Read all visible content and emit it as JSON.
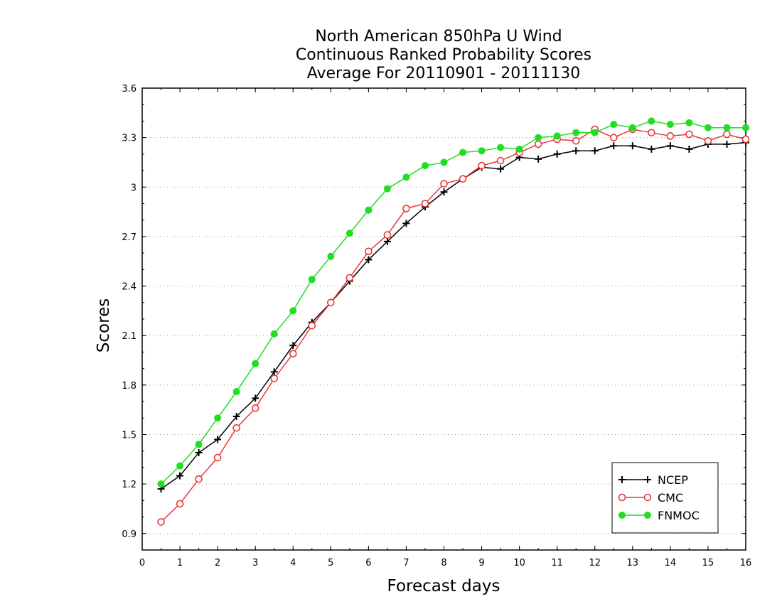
{
  "chart_data": {
    "type": "line",
    "title": [
      "North American 850hPa U Wind",
      "Continuous Ranked Probability Scores",
      "Average For 20110901 - 20111130"
    ],
    "xlabel": "Forecast days",
    "ylabel": "Scores",
    "xlim": [
      0,
      16
    ],
    "ylim": [
      0.8,
      3.6
    ],
    "xticks": [
      "0",
      "1",
      "2",
      "3",
      "4",
      "5",
      "6",
      "7",
      "8",
      "9",
      "10",
      "11",
      "12",
      "13",
      "14",
      "15",
      "16"
    ],
    "yticks": [
      "0.9",
      "1.2",
      "1.5",
      "1.8",
      "2.1",
      "2.4",
      "2.7",
      "3",
      "3.3",
      "3.6"
    ],
    "grid": true,
    "legend_position": "bottom-right",
    "x": [
      0.5,
      1,
      1.5,
      2,
      2.5,
      3,
      3.5,
      4,
      4.5,
      5,
      5.5,
      6,
      6.5,
      7,
      7.5,
      8,
      8.5,
      9,
      9.5,
      10,
      10.5,
      11,
      11.5,
      12,
      12.5,
      13,
      13.5,
      14,
      14.5,
      15,
      15.5,
      16
    ],
    "series": [
      {
        "name": "NCEP",
        "color": "#000000",
        "marker": "plus",
        "values": [
          1.17,
          1.25,
          1.39,
          1.47,
          1.61,
          1.72,
          1.88,
          2.04,
          2.18,
          2.3,
          2.43,
          2.56,
          2.67,
          2.78,
          2.88,
          2.97,
          3.05,
          3.12,
          3.11,
          3.18,
          3.17,
          3.2,
          3.22,
          3.22,
          3.25,
          3.25,
          3.23,
          3.25,
          3.23,
          3.26,
          3.26,
          3.27
        ]
      },
      {
        "name": "CMC",
        "color": "#e83838",
        "marker": "open-circle",
        "values": [
          0.97,
          1.08,
          1.23,
          1.36,
          1.54,
          1.66,
          1.84,
          1.99,
          2.16,
          2.3,
          2.45,
          2.61,
          2.71,
          2.87,
          2.9,
          3.02,
          3.05,
          3.13,
          3.16,
          3.21,
          3.26,
          3.29,
          3.28,
          3.35,
          3.3,
          3.35,
          3.33,
          3.31,
          3.32,
          3.28,
          3.32,
          3.29
        ]
      },
      {
        "name": "FNMOC",
        "color": "#22dd22",
        "marker": "filled-circle",
        "values": [
          1.2,
          1.31,
          1.44,
          1.6,
          1.76,
          1.93,
          2.11,
          2.25,
          2.44,
          2.58,
          2.72,
          2.86,
          2.99,
          3.06,
          3.13,
          3.15,
          3.21,
          3.22,
          3.24,
          3.23,
          3.3,
          3.31,
          3.33,
          3.33,
          3.38,
          3.36,
          3.4,
          3.38,
          3.39,
          3.36,
          3.36,
          3.36
        ]
      }
    ]
  }
}
